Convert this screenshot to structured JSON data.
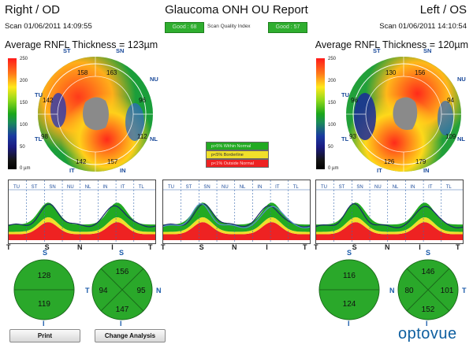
{
  "header": {
    "left_title": "Right / OD",
    "center_title": "Glaucoma ONH OU Report",
    "right_title": "Left / OS",
    "scan_left": "Scan 01/06/2011 14:09:55",
    "scan_right": "Scan 01/06/2011 14:10:54",
    "quality_left": "Good : 68",
    "quality_label": "Scan Quality Index",
    "quality_right": "Good : 57",
    "avg_left": "Average RNFL Thickness = 123µm",
    "avg_right": "Average RNFL Thickness = 120µm"
  },
  "colorbar": {
    "ticks": [
      "250",
      "200",
      "150",
      "100",
      "50",
      "0 µm"
    ]
  },
  "legend": {
    "normal": "p>5% Within Normal",
    "borderline": "p<5% Borderline",
    "outside": "p<1% Outside Normal",
    "colors": {
      "normal": "#22aa22",
      "borderline": "#f0e02a",
      "outside": "#ee2222"
    }
  },
  "od_map": {
    "quadrants": {
      "ST": "ST",
      "SN": "SN",
      "NU": "NU",
      "NL": "NL",
      "IN": "IN",
      "IT": "IT",
      "TL": "TL",
      "TU": "TU"
    },
    "values": {
      "top_left": "158",
      "top_right": "163",
      "right_upper": "96",
      "right_lower": "112",
      "bottom_right": "157",
      "bottom_left": "142",
      "left_lower": "98",
      "left_upper": "142"
    }
  },
  "os_map": {
    "quadrants": {
      "ST": "ST",
      "SN": "SN",
      "NU": "NU",
      "NL": "NL",
      "IN": "IN",
      "IT": "IT",
      "TL": "TL",
      "TU": "TU"
    },
    "values": {
      "top_left": "130",
      "top_right": "156",
      "right_upper": "94",
      "right_lower": "109",
      "bottom_right": "179",
      "bottom_left": "126",
      "left_lower": "93",
      "left_upper": "96"
    }
  },
  "tsnit": {
    "top_labels": [
      "TU",
      "ST",
      "SN",
      "NU",
      "NL",
      "IN",
      "IT",
      "TL"
    ],
    "bottom_labels": [
      "T",
      "S",
      "N",
      "I",
      "T"
    ]
  },
  "od_circles": {
    "hemi": {
      "top_label": "S",
      "bottom_label": "I",
      "superior": "128",
      "inferior": "119"
    },
    "quad": {
      "top_label": "S",
      "bottom_label": "I",
      "left_label": "T",
      "right_label": "N",
      "superior": "156",
      "temporal": "94",
      "nasal": "95",
      "inferior": "147"
    }
  },
  "os_circles": {
    "hemi": {
      "top_label": "S",
      "bottom_label": "I",
      "superior": "116",
      "inferior": "124"
    },
    "quad": {
      "top_label": "S",
      "bottom_label": "I",
      "left_label": "N",
      "right_label": "T",
      "superior": "146",
      "nasal": "80",
      "temporal": "101",
      "inferior": "152"
    }
  },
  "buttons": {
    "print": "Print",
    "change_analysis": "Change Analysis"
  },
  "logo": "optovue"
}
